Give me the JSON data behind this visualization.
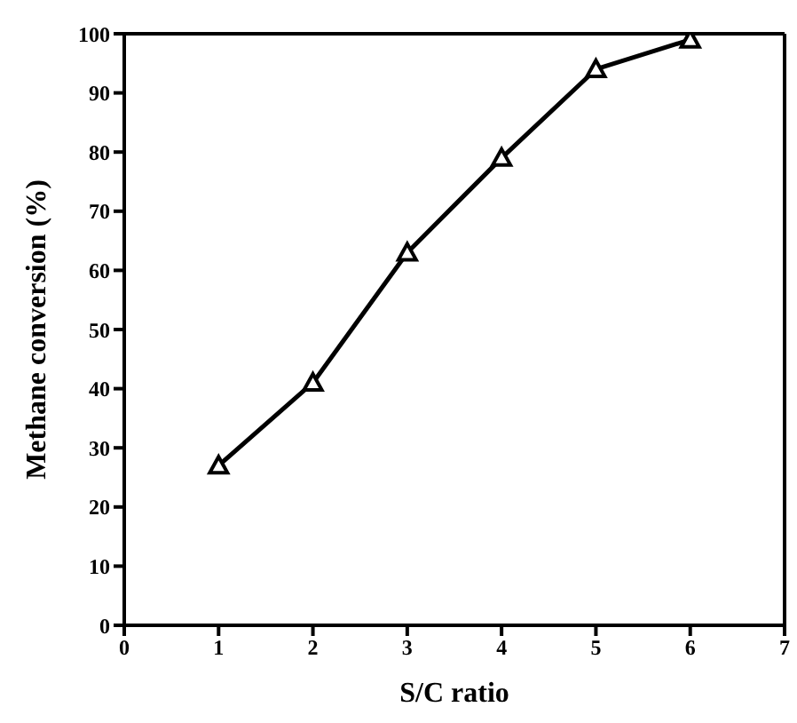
{
  "chart_data": {
    "type": "line",
    "xlabel": "S/C ratio",
    "ylabel": "Methane conversion (%)",
    "x": [
      1,
      2,
      3,
      4,
      5,
      6
    ],
    "series": [
      {
        "color": "#000000",
        "values": [
          27,
          41,
          63,
          79,
          94,
          99
        ]
      }
    ],
    "xlim": [
      0,
      7
    ],
    "xticks": [
      0,
      1,
      2,
      3,
      4,
      5,
      6,
      7
    ],
    "ylim": [
      0,
      100
    ],
    "yticks": [
      0,
      10,
      20,
      30,
      40,
      50,
      60,
      70,
      80,
      90,
      100
    ],
    "marker": "triangle",
    "line_style": "solid",
    "grid": false,
    "legend": false
  }
}
